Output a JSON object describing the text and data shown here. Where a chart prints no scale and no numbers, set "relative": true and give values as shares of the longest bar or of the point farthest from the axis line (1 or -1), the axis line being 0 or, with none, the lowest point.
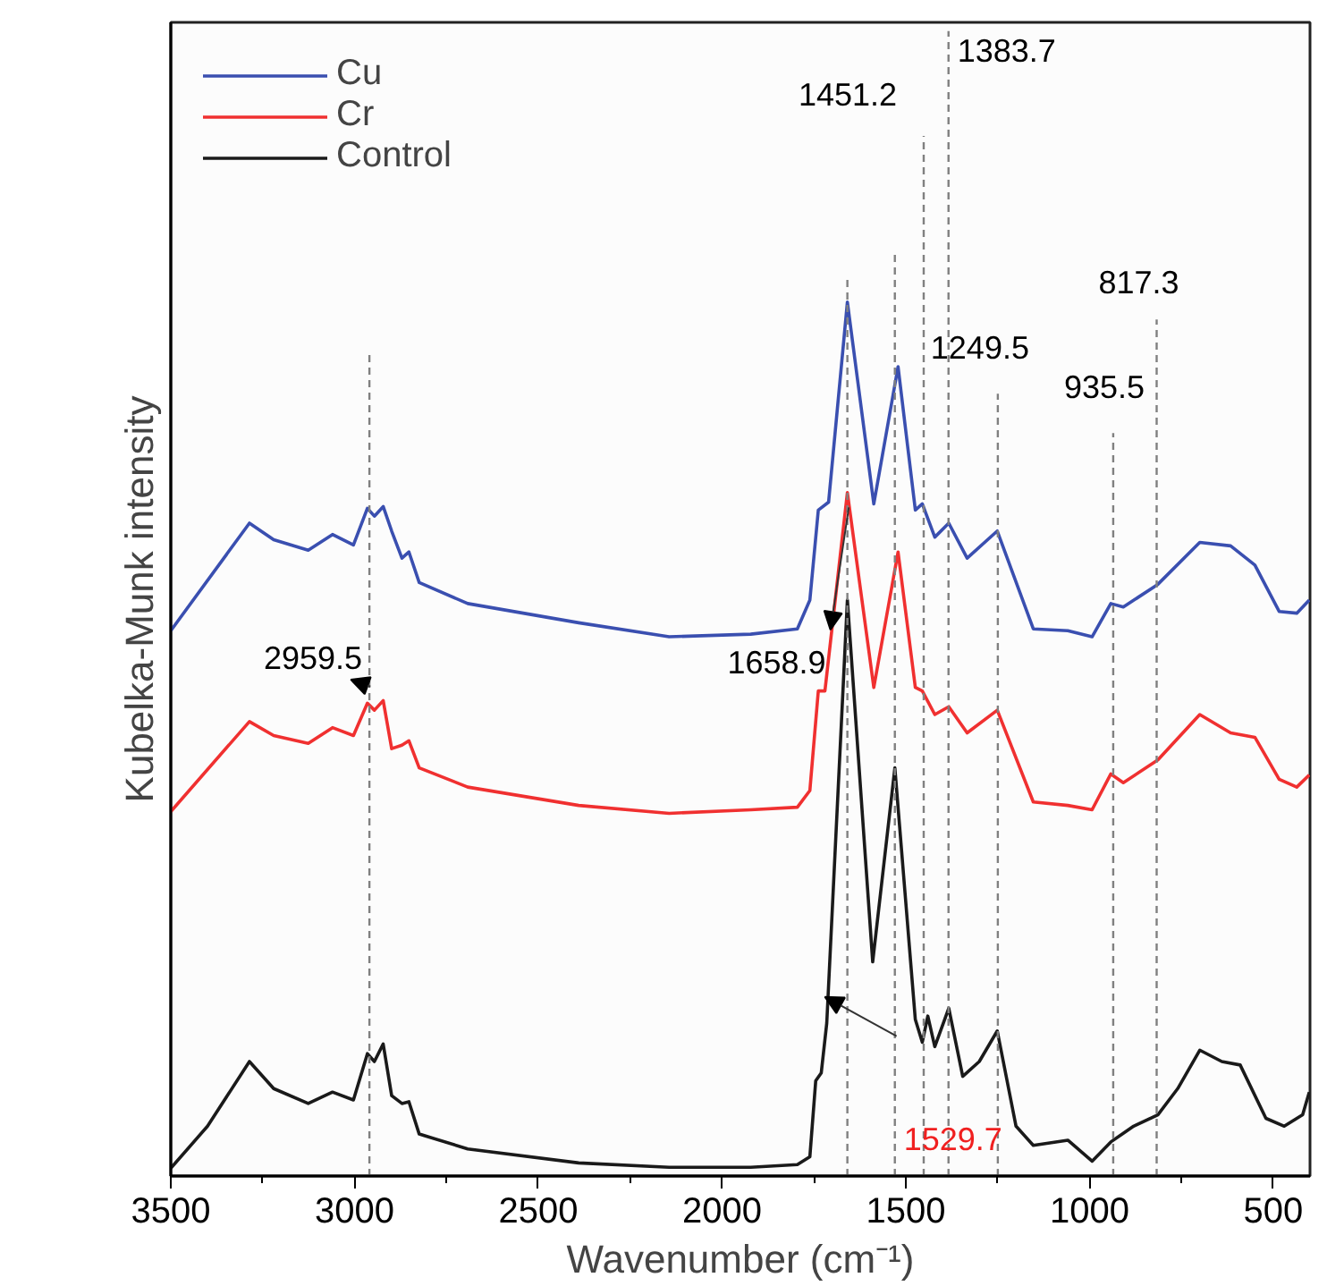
{
  "chart_data": {
    "type": "line",
    "relative": true,
    "xlabel": "Wavenumber (cm⁻¹)",
    "ylabel": "Kubelka-Munk intensity",
    "xlim": [
      3500,
      400
    ],
    "xticks": [
      3500,
      3000,
      2500,
      2000,
      1500,
      1000,
      500
    ],
    "grid": false,
    "legend": "top left",
    "tick_labels": "x",
    "series": [
      {
        "name": "Cu",
        "color": "#3a4fb0",
        "x": [
          3500,
          3286,
          3220,
          3126,
          3060,
          3003,
          2965,
          2946,
          2922,
          2899,
          2871,
          2852,
          2824,
          2692,
          2390,
          2144,
          1922,
          1795,
          1761,
          1738,
          1710,
          1658.9,
          1587,
          1521,
          1474,
          1455,
          1421,
          1383,
          1333,
          1251,
          1153,
          1059,
          993,
          942,
          908,
          814,
          700,
          616,
          550,
          484,
          436,
          402
        ],
        "values": [
          0.624,
          0.747,
          0.728,
          0.716,
          0.734,
          0.722,
          0.764,
          0.755,
          0.766,
          0.738,
          0.707,
          0.714,
          0.679,
          0.655,
          0.633,
          0.617,
          0.62,
          0.626,
          0.659,
          0.762,
          0.771,
          1.0,
          0.769,
          0.926,
          0.762,
          0.769,
          0.731,
          0.747,
          0.707,
          0.738,
          0.626,
          0.624,
          0.617,
          0.655,
          0.651,
          0.677,
          0.725,
          0.721,
          0.699,
          0.646,
          0.644,
          0.659
        ]
      },
      {
        "name": "Cr",
        "color": "#f03030",
        "x": [
          3500,
          3286,
          3220,
          3126,
          3060,
          3003,
          2965,
          2946,
          2922,
          2899,
          2871,
          2852,
          2824,
          2692,
          2390,
          2144,
          1922,
          1795,
          1761,
          1738,
          1720,
          1658.9,
          1587,
          1521,
          1474,
          1455,
          1421,
          1383,
          1333,
          1251,
          1153,
          1059,
          993,
          942,
          908,
          814,
          700,
          616,
          550,
          484,
          436,
          402
        ],
        "values": [
          0.417,
          0.52,
          0.504,
          0.495,
          0.513,
          0.504,
          0.541,
          0.533,
          0.544,
          0.489,
          0.493,
          0.498,
          0.467,
          0.445,
          0.424,
          0.415,
          0.419,
          0.422,
          0.441,
          0.555,
          0.555,
          0.782,
          0.559,
          0.714,
          0.559,
          0.555,
          0.528,
          0.537,
          0.507,
          0.533,
          0.428,
          0.424,
          0.419,
          0.46,
          0.45,
          0.476,
          0.528,
          0.507,
          0.502,
          0.454,
          0.445,
          0.459
        ]
      },
      {
        "name": "Control",
        "color": "#1a1a1a",
        "x": [
          3500,
          3400,
          3286,
          3220,
          3126,
          3060,
          3003,
          2965,
          2946,
          2922,
          2899,
          2871,
          2852,
          2824,
          2692,
          2390,
          2144,
          1922,
          1795,
          1761,
          1745,
          1730,
          1715,
          1658.9,
          1590,
          1529.7,
          1474,
          1455,
          1440,
          1421,
          1383,
          1345,
          1300,
          1251,
          1200,
          1153,
          1059,
          993,
          942,
          880,
          814,
          760,
          700,
          640,
          590,
          520,
          470,
          420,
          402
        ],
        "values": [
          0.009,
          0.057,
          0.131,
          0.1,
          0.083,
          0.096,
          0.087,
          0.14,
          0.131,
          0.151,
          0.092,
          0.083,
          0.085,
          0.048,
          0.031,
          0.015,
          0.01,
          0.01,
          0.013,
          0.022,
          0.109,
          0.118,
          0.175,
          0.659,
          0.245,
          0.467,
          0.179,
          0.153,
          0.183,
          0.148,
          0.192,
          0.114,
          0.131,
          0.166,
          0.057,
          0.035,
          0.041,
          0.017,
          0.039,
          0.057,
          0.07,
          0.1,
          0.144,
          0.131,
          0.127,
          0.066,
          0.057,
          0.07,
          0.096
        ]
      }
    ],
    "ref_lines": [
      {
        "axis": "x",
        "value": 2959.5,
        "label": "2959.5",
        "color": "#808080",
        "line_style": "dashed"
      },
      {
        "axis": "x",
        "value": 1658.9,
        "label": "1658.9",
        "color": "#808080",
        "line_style": "dashed"
      },
      {
        "axis": "x",
        "value": 1529.7,
        "label": "1529.7",
        "color": "#808080",
        "line_style": "dashed"
      },
      {
        "axis": "x",
        "value": 1451.2,
        "label": "1451.2",
        "color": "#808080",
        "line_style": "dashed"
      },
      {
        "axis": "x",
        "value": 1383.7,
        "label": "1383.7",
        "color": "#808080",
        "line_style": "dashed"
      },
      {
        "axis": "x",
        "value": 1249.5,
        "label": "1249.5",
        "color": "#808080",
        "line_style": "dashed"
      },
      {
        "axis": "x",
        "value": 935.5,
        "label": "935.5",
        "color": "#808080",
        "line_style": "dashed"
      },
      {
        "axis": "x",
        "value": 817.3,
        "label": "817.3",
        "color": "#808080",
        "line_style": "dashed"
      }
    ]
  }
}
